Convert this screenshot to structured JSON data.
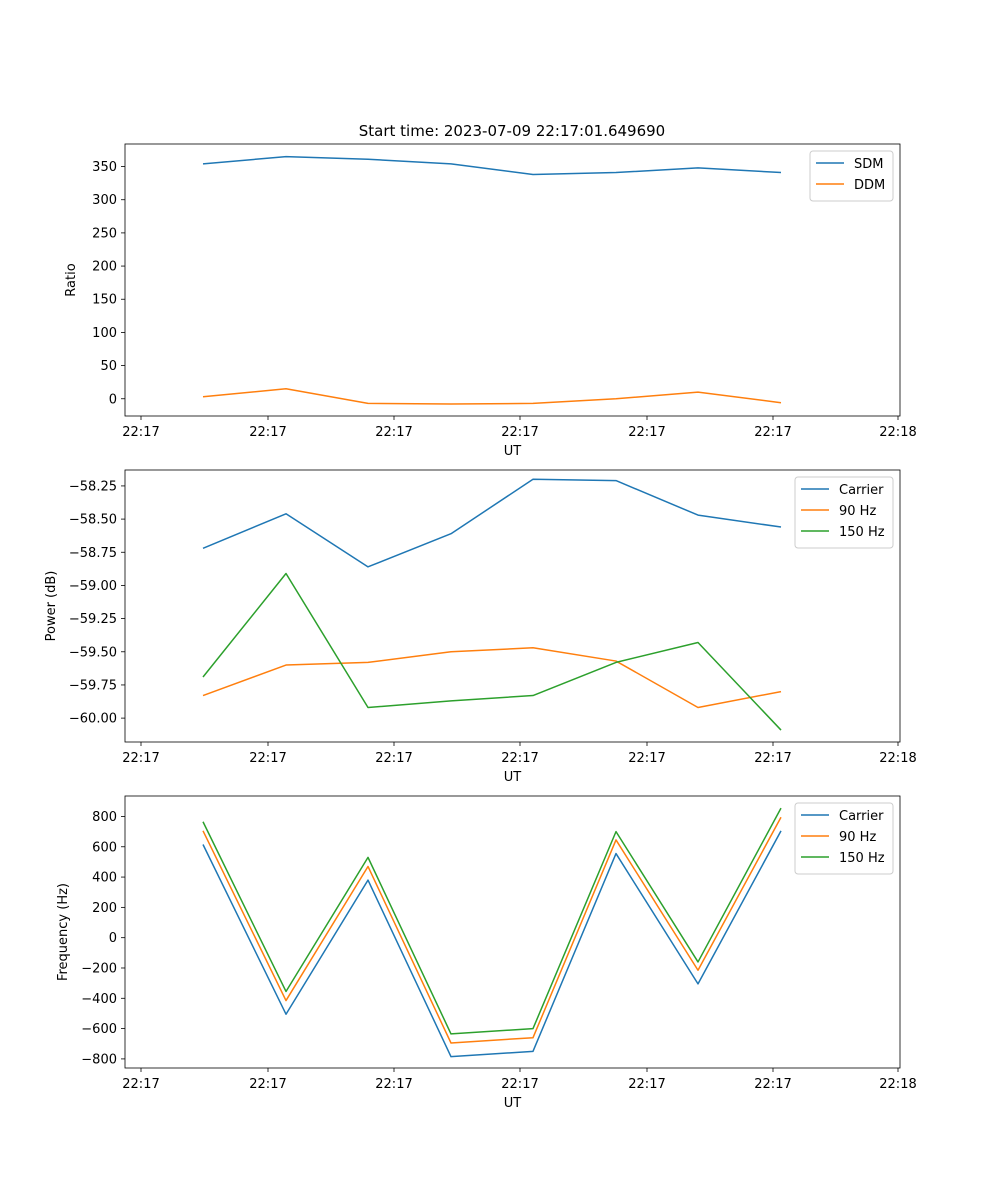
{
  "figure_title": "Start time: 2023-07-09 22:17:01.649690",
  "colors": {
    "c0": "#1f77b4",
    "c1": "#ff7f0e",
    "c2": "#2ca02c"
  },
  "chart_data": [
    {
      "type": "line",
      "title": "Start time: 2023-07-09 22:17:01.649690",
      "xlabel": "UT",
      "ylabel": "Ratio",
      "x_ticks": [
        "22:17",
        "22:17",
        "22:17",
        "22:17",
        "22:17",
        "22:17",
        "22:18"
      ],
      "y_ticks": [
        0,
        50,
        100,
        150,
        200,
        250,
        300,
        350
      ],
      "y_tick_labels": [
        "0",
        "50",
        "100",
        "150",
        "200",
        "250",
        "300",
        "350"
      ],
      "ylim": [
        -26,
        384
      ],
      "legend_position": "upper right",
      "series": [
        {
          "name": "SDM",
          "color": "#1f77b4",
          "values": [
            354,
            365,
            361,
            354,
            338,
            341,
            348,
            341
          ]
        },
        {
          "name": "DDM",
          "color": "#ff7f0e",
          "values": [
            3,
            15,
            -7,
            -8,
            -7,
            0,
            10,
            -6
          ]
        }
      ]
    },
    {
      "type": "line",
      "title": "",
      "xlabel": "UT",
      "ylabel": "Power (dB)",
      "x_ticks": [
        "22:17",
        "22:17",
        "22:17",
        "22:17",
        "22:17",
        "22:17",
        "22:18"
      ],
      "y_ticks": [
        -60.0,
        -59.75,
        -59.5,
        -59.25,
        -59.0,
        -58.75,
        -58.5,
        -58.25
      ],
      "y_tick_labels": [
        "−60.00",
        "−59.75",
        "−59.50",
        "−59.25",
        "−59.00",
        "−58.75",
        "−58.50",
        "−58.25"
      ],
      "ylim": [
        -60.18,
        -58.13
      ],
      "legend_position": "upper right",
      "series": [
        {
          "name": "Carrier",
          "color": "#1f77b4",
          "values": [
            -58.72,
            -58.46,
            -58.86,
            -58.61,
            -58.2,
            -58.21,
            -58.47,
            -58.56
          ]
        },
        {
          "name": "90 Hz",
          "color": "#ff7f0e",
          "values": [
            -59.83,
            -59.6,
            -59.58,
            -59.5,
            -59.47,
            -59.57,
            -59.92,
            -59.8
          ]
        },
        {
          "name": "150 Hz",
          "color": "#2ca02c",
          "values": [
            -59.69,
            -58.91,
            -59.92,
            -59.87,
            -59.83,
            -59.58,
            -59.43,
            -60.09
          ]
        }
      ]
    },
    {
      "type": "line",
      "title": "",
      "xlabel": "UT",
      "ylabel": "Frequency (Hz)",
      "x_ticks": [
        "22:17",
        "22:17",
        "22:17",
        "22:17",
        "22:17",
        "22:17",
        "22:18"
      ],
      "y_ticks": [
        -800,
        -600,
        -400,
        -200,
        0,
        200,
        400,
        600,
        800
      ],
      "y_tick_labels": [
        "−800",
        "−600",
        "−400",
        "−200",
        "0",
        "200",
        "400",
        "600",
        "800"
      ],
      "ylim": [
        -860,
        935
      ],
      "legend_position": "upper right",
      "series": [
        {
          "name": "Carrier",
          "color": "#1f77b4",
          "values": [
            615,
            -505,
            380,
            -785,
            -750,
            555,
            -305,
            705
          ]
        },
        {
          "name": "90 Hz",
          "color": "#ff7f0e",
          "values": [
            705,
            -415,
            470,
            -695,
            -660,
            645,
            -215,
            795
          ]
        },
        {
          "name": "150 Hz",
          "color": "#2ca02c",
          "values": [
            765,
            -355,
            530,
            -635,
            -600,
            700,
            -160,
            855
          ]
        }
      ]
    }
  ]
}
